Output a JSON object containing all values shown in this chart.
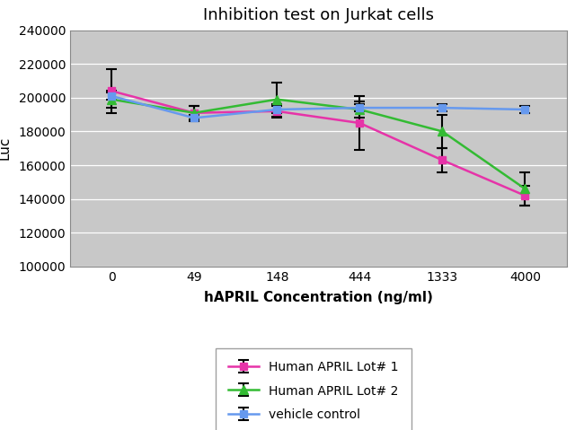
{
  "title": "Inhibition test on Jurkat cells",
  "xlabel": "hAPRIL Concentration (ng/ml)",
  "ylabel": "Luc",
  "x_labels": [
    "0",
    "49",
    "148",
    "444",
    "1333",
    "4000"
  ],
  "x_positions": [
    0,
    1,
    2,
    3,
    4,
    5
  ],
  "ylim": [
    100000,
    240000
  ],
  "yticks": [
    100000,
    120000,
    140000,
    160000,
    180000,
    200000,
    220000,
    240000
  ],
  "series": [
    {
      "label": "Human APRIL Lot# 1",
      "color": "#e633a8",
      "ecolor": "#000000",
      "marker": "s",
      "markersize": 6,
      "values": [
        204000,
        191000,
        192000,
        185000,
        163000,
        142000
      ],
      "yerr": [
        13000,
        4000,
        4000,
        16000,
        7000,
        6000
      ]
    },
    {
      "label": "Human APRIL Lot# 2",
      "color": "#33bb33",
      "ecolor": "#000000",
      "marker": "^",
      "markersize": 7,
      "values": [
        199000,
        191000,
        199000,
        193000,
        180000,
        146000
      ],
      "yerr": [
        5000,
        4000,
        10000,
        5000,
        10000,
        10000
      ]
    },
    {
      "label": "vehicle control",
      "color": "#6699ee",
      "ecolor": "#000000",
      "marker": "s",
      "markersize": 6,
      "values": [
        201000,
        188000,
        193000,
        194000,
        194000,
        193000
      ],
      "yerr": [
        2000,
        2000,
        2000,
        2000,
        2000,
        2000
      ]
    }
  ],
  "fig_bg_color": "#ffffff",
  "plot_bg_color": "#c8c8c8",
  "grid_color": "#aaaaaa",
  "title_fontsize": 13,
  "axis_label_fontsize": 11,
  "tick_fontsize": 10,
  "legend_fontsize": 10
}
